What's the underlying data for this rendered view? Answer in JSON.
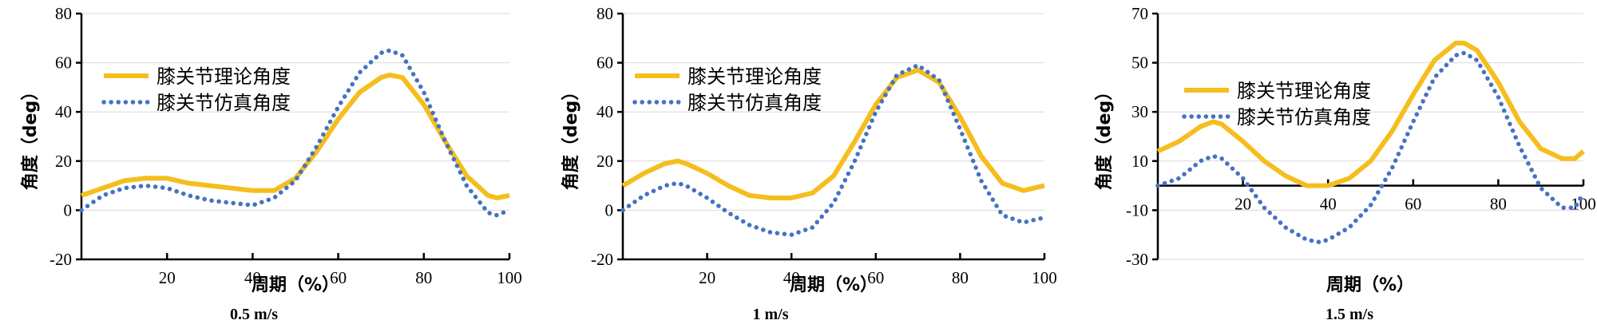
{
  "colors": {
    "theoretical": "#F5BE1E",
    "simulated": "#4472C4",
    "axis": "#000000",
    "grid": "#D9D9D9"
  },
  "captions": [
    "0.5 m/s",
    "1 m/s",
    "1.5 m/s"
  ],
  "chart_data": [
    {
      "type": "line",
      "xlabel": "周期（%）",
      "ylabel": "角度（deg）",
      "xlim": [
        0,
        100
      ],
      "ylim": [
        -20,
        80
      ],
      "xticks": [
        20,
        40,
        60,
        80,
        100
      ],
      "yticks": [
        -20,
        0,
        20,
        40,
        60,
        80
      ],
      "grid": true,
      "legend": "top-left",
      "series": [
        {
          "name": "膝关节理论角度",
          "style": "solid",
          "x": [
            0,
            5,
            10,
            15,
            20,
            25,
            30,
            35,
            40,
            45,
            50,
            55,
            60,
            65,
            70,
            72,
            75,
            80,
            85,
            90,
            95,
            97,
            100
          ],
          "y": [
            6,
            9,
            12,
            13,
            13,
            11,
            10,
            9,
            8,
            8,
            13,
            24,
            37,
            48,
            54,
            55,
            54,
            43,
            28,
            14,
            6,
            5,
            6
          ]
        },
        {
          "name": "膝关节仿真角度",
          "style": "dotted",
          "x": [
            0,
            5,
            10,
            15,
            20,
            25,
            30,
            35,
            40,
            45,
            50,
            55,
            60,
            65,
            70,
            72,
            75,
            80,
            85,
            90,
            95,
            97,
            100
          ],
          "y": [
            0,
            6,
            9,
            10,
            9,
            6,
            4,
            3,
            2,
            5,
            12,
            26,
            42,
            56,
            64,
            65,
            63,
            48,
            28,
            10,
            -1,
            -2,
            0
          ]
        }
      ]
    },
    {
      "type": "line",
      "xlabel": "周期（%）",
      "ylabel": "角度（deg）",
      "xlim": [
        0,
        100
      ],
      "ylim": [
        -20,
        80
      ],
      "xticks": [
        20,
        40,
        60,
        80,
        100
      ],
      "yticks": [
        -20,
        0,
        20,
        40,
        60,
        80
      ],
      "grid": true,
      "legend": "top-left",
      "series": [
        {
          "name": "膝关节理论角度",
          "style": "solid",
          "x": [
            0,
            5,
            10,
            13,
            15,
            20,
            25,
            30,
            35,
            40,
            45,
            50,
            55,
            60,
            65,
            70,
            75,
            80,
            85,
            90,
            95,
            100
          ],
          "y": [
            10,
            15,
            19,
            20,
            19,
            15,
            10,
            6,
            5,
            5,
            7,
            14,
            28,
            43,
            54,
            57,
            52,
            38,
            22,
            11,
            8,
            10
          ]
        },
        {
          "name": "膝关节仿真角度",
          "style": "dotted",
          "x": [
            0,
            5,
            10,
            13,
            15,
            20,
            25,
            30,
            35,
            40,
            45,
            50,
            55,
            60,
            65,
            70,
            75,
            80,
            85,
            90,
            95,
            100
          ],
          "y": [
            0,
            6,
            10,
            11,
            10,
            5,
            -1,
            -6,
            -9,
            -10,
            -7,
            3,
            20,
            40,
            55,
            59,
            53,
            33,
            12,
            -2,
            -5,
            -3
          ]
        }
      ]
    },
    {
      "type": "line",
      "xlabel": "周期（%）",
      "ylabel": "角度（deg）",
      "xlim": [
        0,
        100
      ],
      "ylim": [
        -30,
        70
      ],
      "xticks": [
        20,
        40,
        60,
        80,
        100
      ],
      "yticks": [
        -30,
        -10,
        10,
        30,
        50,
        70
      ],
      "grid": true,
      "legend": "top-left",
      "series": [
        {
          "name": "膝关节理论角度",
          "style": "solid",
          "x": [
            0,
            5,
            10,
            13,
            15,
            20,
            25,
            30,
            35,
            40,
            45,
            50,
            55,
            60,
            65,
            70,
            72,
            75,
            80,
            85,
            90,
            95,
            98,
            100
          ],
          "y": [
            14,
            18,
            24,
            26,
            25,
            18,
            10,
            4,
            0,
            0,
            3,
            10,
            22,
            37,
            51,
            58,
            58,
            55,
            42,
            26,
            15,
            11,
            11,
            14
          ]
        },
        {
          "name": "膝关节仿真角度",
          "style": "dotted",
          "x": [
            0,
            5,
            10,
            13,
            15,
            20,
            25,
            30,
            35,
            38,
            40,
            45,
            50,
            55,
            60,
            65,
            70,
            72,
            75,
            80,
            85,
            90,
            95,
            98,
            100
          ],
          "y": [
            0,
            3,
            10,
            12,
            11,
            3,
            -9,
            -17,
            -22,
            -23,
            -22,
            -17,
            -8,
            7,
            26,
            44,
            53,
            54,
            51,
            36,
            16,
            -1,
            -9,
            -9,
            -3
          ]
        }
      ]
    }
  ]
}
